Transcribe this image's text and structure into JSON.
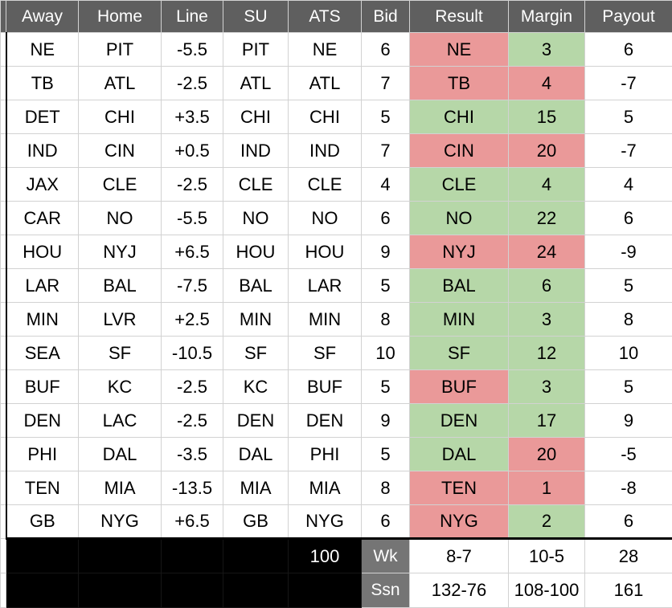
{
  "colors": {
    "header_bg": "#5f5f5f",
    "label_bg": "#757575",
    "red": "#ea9999",
    "green": "#b6d7a8",
    "grid": "#d2d2d2",
    "black_line": "#161616"
  },
  "columns": [
    "Away",
    "Home",
    "Line",
    "SU",
    "ATS",
    "Bid",
    "Result",
    "Margin",
    "Payout"
  ],
  "rows": [
    {
      "away": "NE",
      "home": "PIT",
      "line": "-5.5",
      "su": "PIT",
      "ats": "NE",
      "bid": "6",
      "result": "NE",
      "result_color": "red",
      "margin": "3",
      "margin_color": "green",
      "payout": "6"
    },
    {
      "away": "TB",
      "home": "ATL",
      "line": "-2.5",
      "su": "ATL",
      "ats": "ATL",
      "bid": "7",
      "result": "TB",
      "result_color": "red",
      "margin": "4",
      "margin_color": "red",
      "payout": "-7"
    },
    {
      "away": "DET",
      "home": "CHI",
      "line": "+3.5",
      "su": "CHI",
      "ats": "CHI",
      "bid": "5",
      "result": "CHI",
      "result_color": "green",
      "margin": "15",
      "margin_color": "green",
      "payout": "5"
    },
    {
      "away": "IND",
      "home": "CIN",
      "line": "+0.5",
      "su": "IND",
      "ats": "IND",
      "bid": "7",
      "result": "CIN",
      "result_color": "red",
      "margin": "20",
      "margin_color": "red",
      "payout": "-7"
    },
    {
      "away": "JAX",
      "home": "CLE",
      "line": "-2.5",
      "su": "CLE",
      "ats": "CLE",
      "bid": "4",
      "result": "CLE",
      "result_color": "green",
      "margin": "4",
      "margin_color": "green",
      "payout": "4"
    },
    {
      "away": "CAR",
      "home": "NO",
      "line": "-5.5",
      "su": "NO",
      "ats": "NO",
      "bid": "6",
      "result": "NO",
      "result_color": "green",
      "margin": "22",
      "margin_color": "green",
      "payout": "6"
    },
    {
      "away": "HOU",
      "home": "NYJ",
      "line": "+6.5",
      "su": "HOU",
      "ats": "HOU",
      "bid": "9",
      "result": "NYJ",
      "result_color": "red",
      "margin": "24",
      "margin_color": "red",
      "payout": "-9"
    },
    {
      "away": "LAR",
      "home": "BAL",
      "line": "-7.5",
      "su": "BAL",
      "ats": "LAR",
      "bid": "5",
      "result": "BAL",
      "result_color": "green",
      "margin": "6",
      "margin_color": "green",
      "payout": "5"
    },
    {
      "away": "MIN",
      "home": "LVR",
      "line": "+2.5",
      "su": "MIN",
      "ats": "MIN",
      "bid": "8",
      "result": "MIN",
      "result_color": "green",
      "margin": "3",
      "margin_color": "green",
      "payout": "8"
    },
    {
      "away": "SEA",
      "home": "SF",
      "line": "-10.5",
      "su": "SF",
      "ats": "SF",
      "bid": "10",
      "result": "SF",
      "result_color": "green",
      "margin": "12",
      "margin_color": "green",
      "payout": "10"
    },
    {
      "away": "BUF",
      "home": "KC",
      "line": "-2.5",
      "su": "KC",
      "ats": "BUF",
      "bid": "5",
      "result": "BUF",
      "result_color": "red",
      "margin": "3",
      "margin_color": "green",
      "payout": "5"
    },
    {
      "away": "DEN",
      "home": "LAC",
      "line": "-2.5",
      "su": "DEN",
      "ats": "DEN",
      "bid": "9",
      "result": "DEN",
      "result_color": "green",
      "margin": "17",
      "margin_color": "green",
      "payout": "9"
    },
    {
      "away": "PHI",
      "home": "DAL",
      "line": "-3.5",
      "su": "DAL",
      "ats": "PHI",
      "bid": "5",
      "result": "DAL",
      "result_color": "green",
      "margin": "20",
      "margin_color": "red",
      "payout": "-5"
    },
    {
      "away": "TEN",
      "home": "MIA",
      "line": "-13.5",
      "su": "MIA",
      "ats": "MIA",
      "bid": "8",
      "result": "TEN",
      "result_color": "red",
      "margin": "1",
      "margin_color": "red",
      "payout": "-8"
    },
    {
      "away": "GB",
      "home": "NYG",
      "line": "+6.5",
      "su": "GB",
      "ats": "NYG",
      "bid": "6",
      "result": "NYG",
      "result_color": "red",
      "margin": "2",
      "margin_color": "green",
      "payout": "6"
    }
  ],
  "footer": {
    "bid_total": "100",
    "rows": [
      {
        "label": "Wk",
        "result": "8-7",
        "margin": "10-5",
        "payout": "28"
      },
      {
        "label": "Ssn",
        "result": "132-76",
        "margin": "108-100",
        "payout": "161"
      }
    ]
  }
}
